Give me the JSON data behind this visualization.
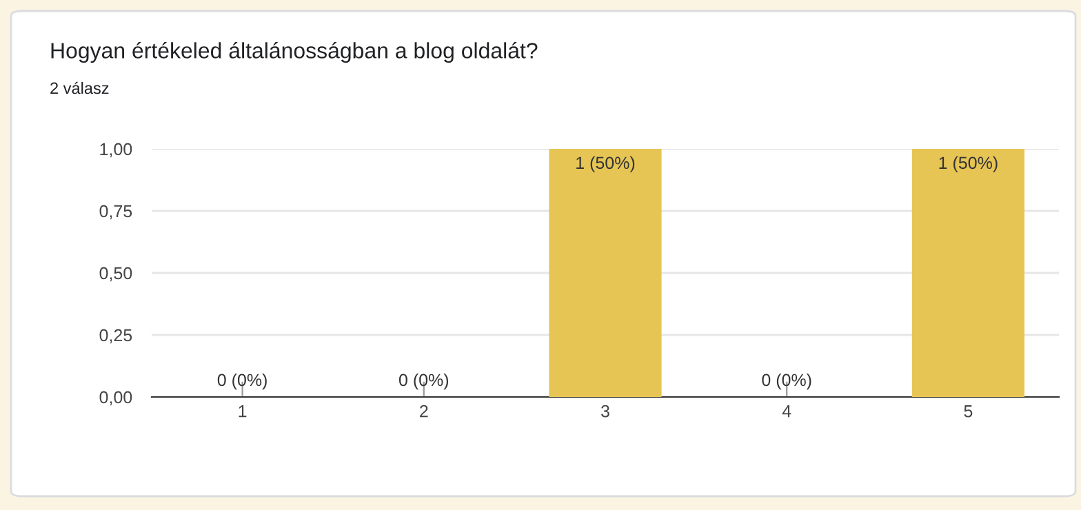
{
  "chart_data": {
    "type": "bar",
    "title": "Hogyan értékeled általánosságban a blog oldalát?",
    "subtitle": "2 válasz",
    "categories": [
      "1",
      "2",
      "3",
      "4",
      "5"
    ],
    "values": [
      0,
      0,
      1,
      0,
      1
    ],
    "value_labels": [
      "0 (0%)",
      "0 (0%)",
      "1 (50%)",
      "0 (0%)",
      "1 (50%)"
    ],
    "color": "#e6c554",
    "ylim": [
      0,
      1
    ],
    "yticks": [
      {
        "value": 0,
        "label": "0,00"
      },
      {
        "value": 0.25,
        "label": "0,25"
      },
      {
        "value": 0.5,
        "label": "0,50"
      },
      {
        "value": 0.75,
        "label": "0,75"
      },
      {
        "value": 1,
        "label": "1,00"
      }
    ],
    "grid": "y"
  }
}
